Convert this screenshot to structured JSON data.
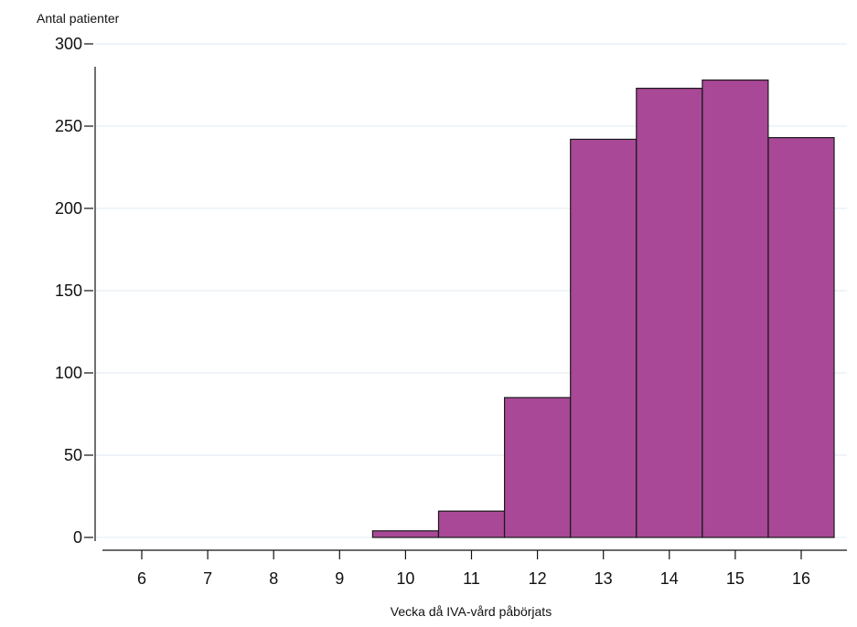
{
  "chart_data": {
    "type": "bar",
    "title": "",
    "ylabel": "Antal patienter",
    "xlabel": "Vecka då IVA-vård påbörjats",
    "categories": [
      "6",
      "7",
      "8",
      "9",
      "10",
      "11",
      "12",
      "13",
      "14",
      "15",
      "16"
    ],
    "values": [
      0,
      0,
      0,
      0,
      4,
      16,
      85,
      242,
      273,
      278,
      243
    ],
    "ylim": [
      0,
      300
    ],
    "yticks": [
      0,
      50,
      100,
      150,
      200,
      250,
      300
    ],
    "grid": true,
    "legend": "none",
    "colors": {
      "bar_fill": "#a84896",
      "bar_stroke": "#1a1a1a",
      "grid": "#e6eef3",
      "axis": "#111111"
    }
  }
}
